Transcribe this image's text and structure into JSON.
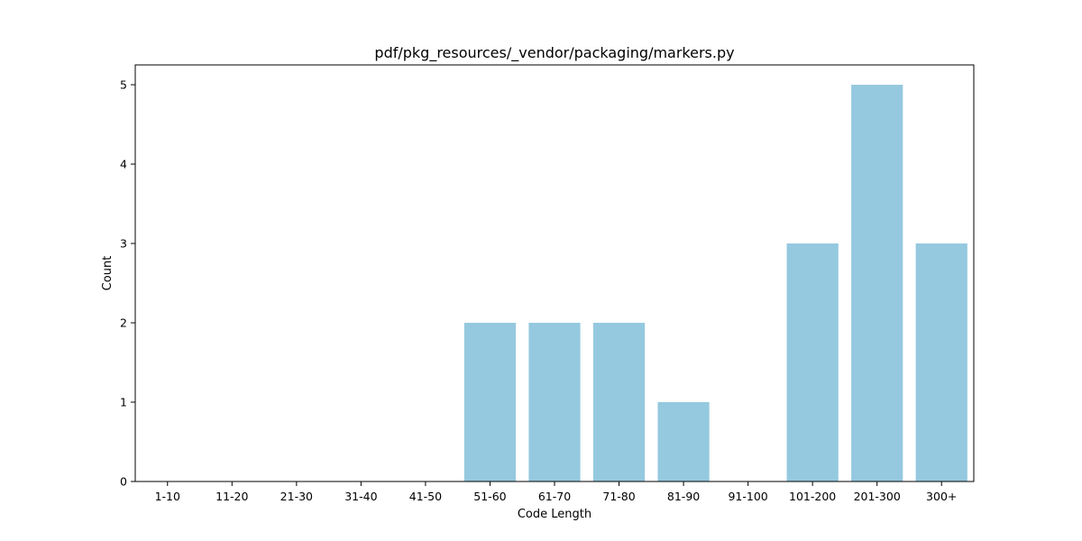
{
  "chart_data": {
    "type": "bar",
    "title": "pdf/pkg_resources/_vendor/packaging/markers.py",
    "xlabel": "Code Length",
    "ylabel": "Count",
    "categories": [
      "1-10",
      "11-20",
      "21-30",
      "31-40",
      "41-50",
      "51-60",
      "61-70",
      "71-80",
      "81-90",
      "91-100",
      "101-200",
      "201-300",
      "300+"
    ],
    "values": [
      0,
      0,
      0,
      0,
      0,
      2,
      2,
      2,
      1,
      0,
      3,
      5,
      3
    ],
    "ylim": [
      0,
      5.25
    ],
    "yticks": [
      0,
      1,
      2,
      3,
      4,
      5
    ],
    "grid": false,
    "legend": "none",
    "colors": {
      "bar": "#95c9df",
      "axis": "#000000",
      "background": "#ffffff"
    }
  }
}
